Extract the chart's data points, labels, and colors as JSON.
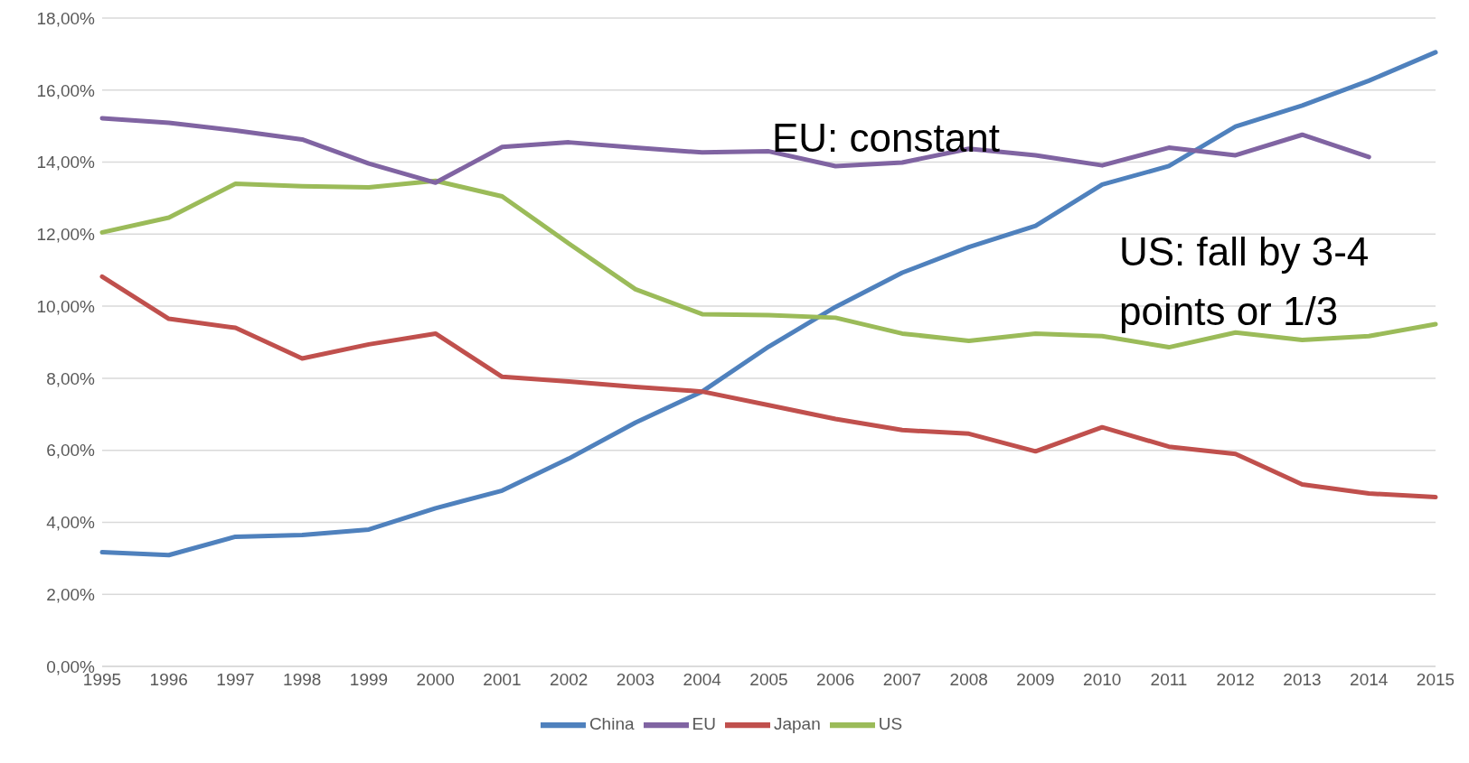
{
  "chart_data": {
    "type": "line",
    "categories": [
      "1995",
      "1996",
      "1997",
      "1998",
      "1999",
      "2000",
      "2001",
      "2002",
      "2003",
      "2004",
      "2005",
      "2006",
      "2007",
      "2008",
      "2009",
      "2010",
      "2011",
      "2012",
      "2013",
      "2014",
      "2015"
    ],
    "series": [
      {
        "name": "China",
        "color": "#4f81bd",
        "values": [
          3.17,
          3.09,
          3.6,
          3.65,
          3.8,
          4.39,
          4.88,
          5.77,
          6.77,
          7.63,
          8.88,
          9.98,
          10.93,
          11.64,
          12.23,
          13.38,
          13.89,
          14.99,
          15.57,
          16.26,
          17.05
        ]
      },
      {
        "name": "Japan",
        "color": "#c0504d",
        "values": [
          10.82,
          9.65,
          9.4,
          8.55,
          8.94,
          9.24,
          8.04,
          7.91,
          7.76,
          7.63,
          7.25,
          6.87,
          6.56,
          6.46,
          5.97,
          6.64,
          6.1,
          5.9,
          5.05,
          4.8,
          4.7
        ]
      },
      {
        "name": "US",
        "color": "#9bbb59",
        "values": [
          12.05,
          12.46,
          13.4,
          13.33,
          13.3,
          13.48,
          13.05,
          11.74,
          10.47,
          9.78,
          9.75,
          9.68,
          9.24,
          9.04,
          9.24,
          9.17,
          8.86,
          9.27,
          9.06,
          9.17,
          9.5
        ]
      },
      {
        "name": "EU",
        "color": "#8064a2",
        "values": [
          15.22,
          15.09,
          14.88,
          14.63,
          13.96,
          13.43,
          14.42,
          14.55,
          14.4,
          14.27,
          14.3,
          13.89,
          13.99,
          14.37,
          14.19,
          13.91,
          14.4,
          14.19,
          14.76,
          14.14,
          null
        ]
      }
    ],
    "ylim": [
      0,
      18
    ],
    "yticks": [
      {
        "value": 0,
        "label": "0,00%"
      },
      {
        "value": 2,
        "label": "2,00%"
      },
      {
        "value": 4,
        "label": "4,00%"
      },
      {
        "value": 6,
        "label": "6,00%"
      },
      {
        "value": 8,
        "label": "8,00%"
      },
      {
        "value": 10,
        "label": "10,00%"
      },
      {
        "value": 12,
        "label": "12,00%"
      },
      {
        "value": 14,
        "label": "14,00%"
      },
      {
        "value": 16,
        "label": "16,00%"
      },
      {
        "value": 18,
        "label": "18,00%"
      }
    ],
    "grid": "y",
    "legend": "bottom",
    "marker": "none",
    "line_style": "solid",
    "annotations": [
      "EU: constant",
      "US: fall by 3-4 points or 1/3"
    ]
  }
}
